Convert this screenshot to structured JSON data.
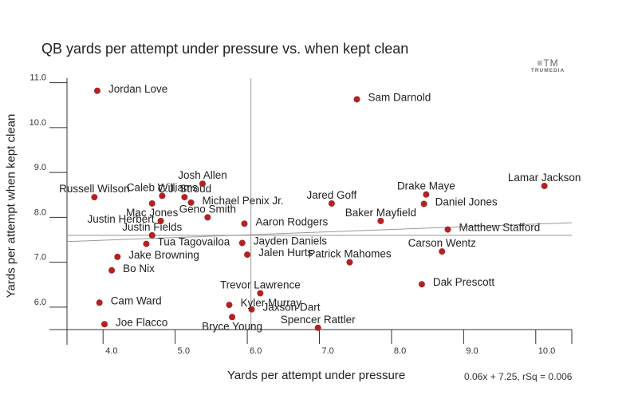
{
  "chart_data": {
    "type": "scatter",
    "title": "QB yards per attempt under pressure vs. when kept clean",
    "xlabel": "Yards per attempt under pressure",
    "ylabel": "Yards per attempt when kept clean",
    "xlim": [
      3.5,
      10.5
    ],
    "ylim": [
      5.5,
      11.1
    ],
    "x_ticks": [
      4.0,
      5.0,
      6.0,
      7.0,
      8.0,
      9.0,
      10.0
    ],
    "y_ticks": [
      6.0,
      7.0,
      8.0,
      9.0,
      10.0,
      11.0
    ],
    "x_tick_labels": [
      "4.0",
      "5.0",
      "6.0",
      "7.0",
      "8.0",
      "9.0",
      "10.0"
    ],
    "y_tick_labels": [
      "6.0",
      "7.0",
      "8.0",
      "9.0",
      "10.0",
      "11.0"
    ],
    "x_mean": 6.05,
    "y_mean": 7.6,
    "trendline": {
      "slope": 0.06,
      "intercept": 7.25
    },
    "fit_label": "0.06x + 7.25, rSq = 0.006",
    "point_color": "#b22222",
    "points": [
      {
        "name": "Jordan Love",
        "x": 3.92,
        "y": 10.82,
        "label_pos": "right"
      },
      {
        "name": "Sam Darnold",
        "x": 7.52,
        "y": 10.63,
        "label_pos": "right"
      },
      {
        "name": "Lamar Jackson",
        "x": 10.12,
        "y": 8.7,
        "label_pos": "above"
      },
      {
        "name": "Drake Maye",
        "x": 8.48,
        "y": 8.51,
        "label_pos": "above"
      },
      {
        "name": "Daniel Jones",
        "x": 8.45,
        "y": 8.3,
        "label_pos": "right"
      },
      {
        "name": "Jared Goff",
        "x": 7.17,
        "y": 8.31,
        "label_pos": "above"
      },
      {
        "name": "Baker Mayfield",
        "x": 7.85,
        "y": 7.92,
        "label_pos": "above"
      },
      {
        "name": "Matthew Stafford",
        "x": 8.78,
        "y": 7.73,
        "label_pos": "right"
      },
      {
        "name": "Carson Wentz",
        "x": 8.7,
        "y": 7.24,
        "label_pos": "above"
      },
      {
        "name": "Dak Prescott",
        "x": 8.42,
        "y": 6.51,
        "label_pos": "right"
      },
      {
        "name": "Patrick Mahomes",
        "x": 7.42,
        "y": 7.0,
        "label_pos": "above"
      },
      {
        "name": "Russell Wilson",
        "x": 3.88,
        "y": 8.45,
        "label_pos": "above"
      },
      {
        "name": "Caleb Williams",
        "x": 4.82,
        "y": 8.48,
        "label_pos": "above"
      },
      {
        "name": "Josh Allen",
        "x": 5.38,
        "y": 8.75,
        "label_pos": "above"
      },
      {
        "name": "C.J. Stroud",
        "x": 5.13,
        "y": 8.45,
        "label_pos": "above"
      },
      {
        "name": "Michael Penix Jr.",
        "x": 5.22,
        "y": 8.33,
        "label_pos": "right"
      },
      {
        "name": "Mac Jones",
        "x": 4.68,
        "y": 8.31,
        "label_pos": "below"
      },
      {
        "name": "Justin Herbert",
        "x": 4.8,
        "y": 7.92,
        "label_pos": "left"
      },
      {
        "name": "Geno Smith",
        "x": 5.45,
        "y": 8.0,
        "label_pos": "above"
      },
      {
        "name": "Aaron Rodgers",
        "x": 5.96,
        "y": 7.86,
        "label_pos": "right"
      },
      {
        "name": "Justin Fields",
        "x": 4.68,
        "y": 7.6,
        "label_pos": "above"
      },
      {
        "name": "Tua Tagovailoa",
        "x": 4.6,
        "y": 7.41,
        "label_pos": "right"
      },
      {
        "name": "Jayden Daniels",
        "x": 5.93,
        "y": 7.43,
        "label_pos": "right"
      },
      {
        "name": "Jalen Hurts",
        "x": 6.0,
        "y": 7.17,
        "label_pos": "right"
      },
      {
        "name": "Jake Browning",
        "x": 4.2,
        "y": 7.12,
        "label_pos": "right"
      },
      {
        "name": "Bo Nix",
        "x": 4.12,
        "y": 6.82,
        "label_pos": "right"
      },
      {
        "name": "Trevor Lawrence",
        "x": 6.18,
        "y": 6.31,
        "label_pos": "above"
      },
      {
        "name": "Cam Ward",
        "x": 3.95,
        "y": 6.1,
        "label_pos": "right"
      },
      {
        "name": "Kyler Murray",
        "x": 5.75,
        "y": 6.05,
        "label_pos": "right"
      },
      {
        "name": "Jaxson Dart",
        "x": 6.06,
        "y": 5.95,
        "label_pos": "right"
      },
      {
        "name": "Bryce Young",
        "x": 5.79,
        "y": 5.78,
        "label_pos": "below"
      },
      {
        "name": "Joe Flacco",
        "x": 4.02,
        "y": 5.62,
        "label_pos": "right"
      },
      {
        "name": "Spencer Rattler",
        "x": 6.98,
        "y": 5.54,
        "label_pos": "above"
      }
    ]
  },
  "brand": {
    "logo_mark": "≡TM",
    "logo_text": "TRUMEDIA"
  }
}
